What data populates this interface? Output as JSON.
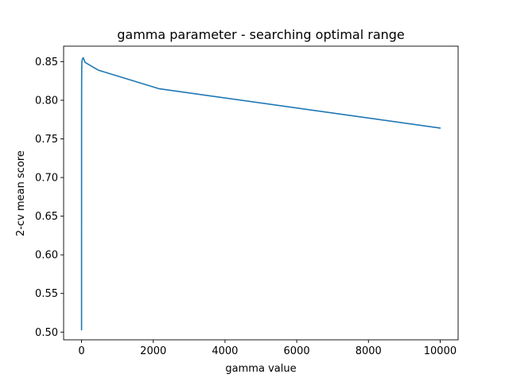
{
  "chart_data": {
    "type": "line",
    "title": "gamma parameter - searching optimal range",
    "xlabel": "gamma value",
    "ylabel": "2-cv mean score",
    "xlim": [
      -500,
      10500
    ],
    "ylim": [
      0.49,
      0.87
    ],
    "xticks": [
      0,
      2000,
      4000,
      6000,
      8000,
      10000
    ],
    "xtick_labels": [
      "0",
      "2000",
      "4000",
      "6000",
      "8000",
      "10000"
    ],
    "yticks": [
      0.5,
      0.55,
      0.6,
      0.65,
      0.7,
      0.75,
      0.8,
      0.85
    ],
    "ytick_labels": [
      "0.50",
      "0.55",
      "0.60",
      "0.65",
      "0.70",
      "0.75",
      "0.80",
      "0.85"
    ],
    "grid": false,
    "series": [
      {
        "color": "#1f77b4",
        "x": [
          0.0001,
          0.001,
          0.01,
          0.1,
          0.5,
          1,
          2,
          5,
          10,
          21.5,
          46,
          100,
          464,
          2154,
          10000
        ],
        "values": [
          0.503,
          0.505,
          0.507,
          0.62,
          0.72,
          0.79,
          0.82,
          0.84,
          0.85,
          0.853,
          0.855,
          0.849,
          0.839,
          0.815,
          0.764
        ]
      }
    ]
  }
}
